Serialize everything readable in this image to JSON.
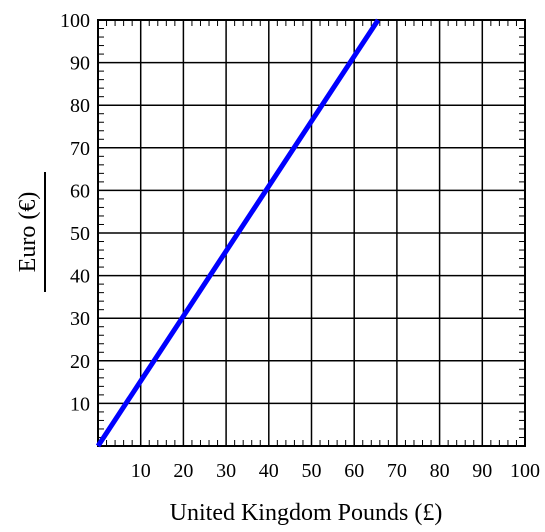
{
  "chart_data": {
    "type": "line",
    "title": "",
    "xlabel": "United Kingdom Pounds (£)",
    "ylabel": "Euro (€)",
    "xlim": [
      0,
      100
    ],
    "ylim": [
      0,
      100
    ],
    "x_ticks": [
      10,
      20,
      30,
      40,
      50,
      60,
      70,
      80,
      90,
      100
    ],
    "y_ticks": [
      10,
      20,
      30,
      40,
      50,
      60,
      70,
      80,
      90,
      100
    ],
    "grid": true,
    "series": [
      {
        "color": "#0000ff",
        "x": [
          0,
          20,
          40,
          60,
          65.6
        ],
        "y": [
          0,
          30.5,
          61,
          91.5,
          100
        ]
      }
    ]
  }
}
